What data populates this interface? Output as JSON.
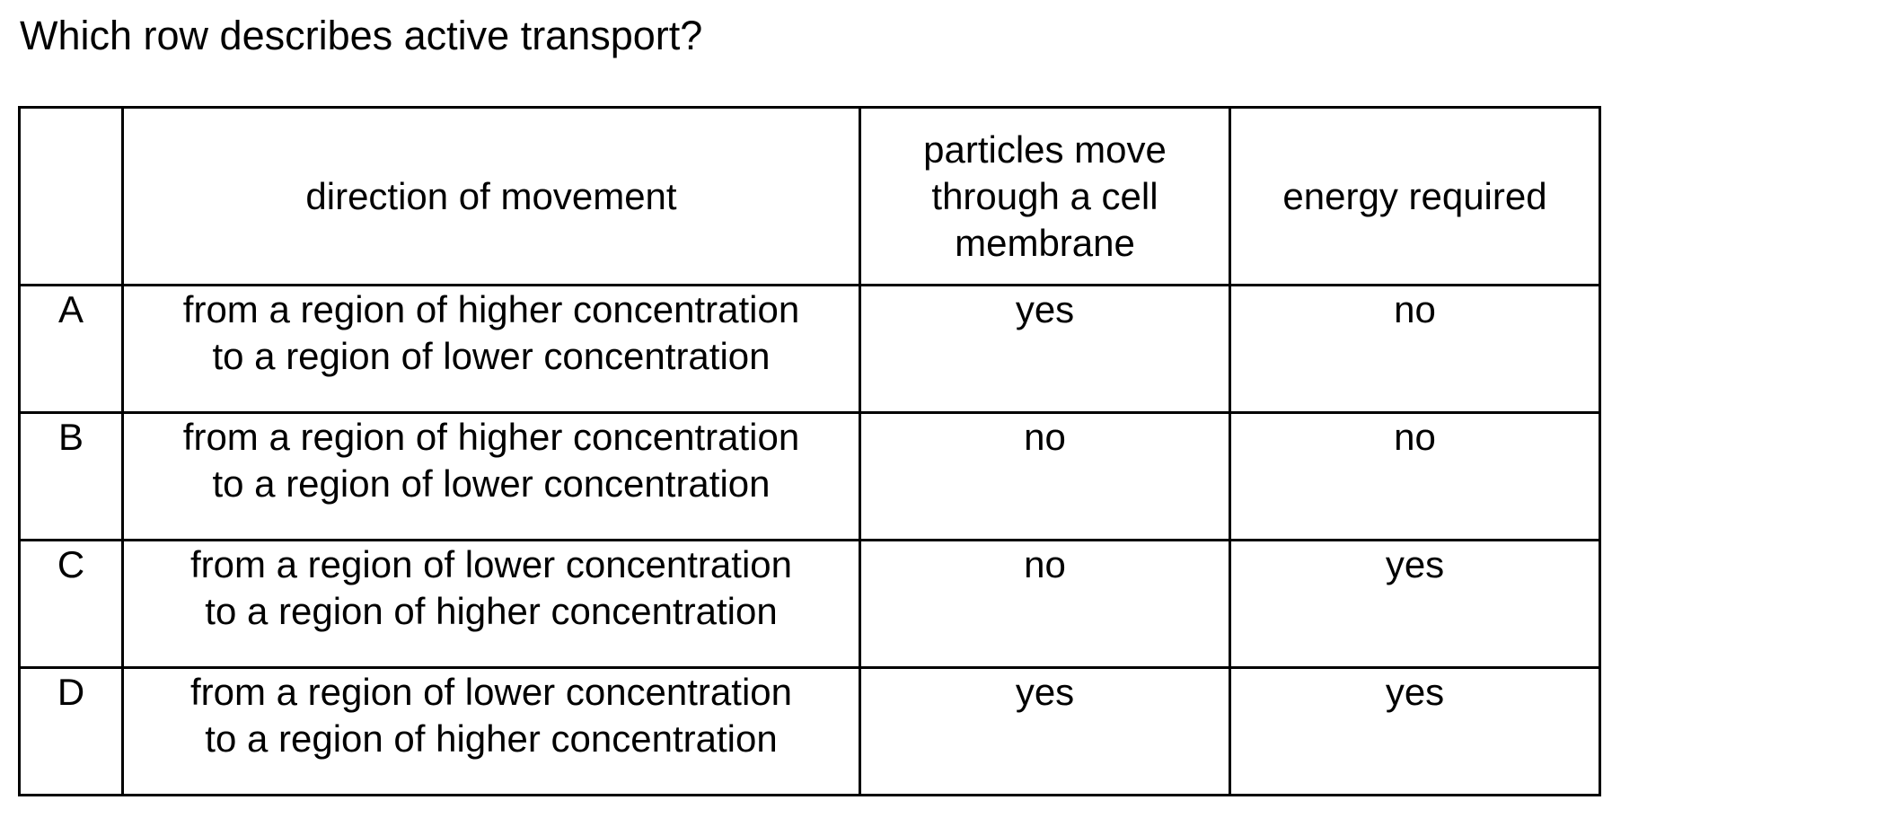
{
  "question": "Which row describes active transport?",
  "table": {
    "headers": [
      "",
      "direction of movement",
      "particles move through a cell membrane",
      "energy required"
    ],
    "header_lines": {
      "particles": [
        "particles move",
        "through a cell",
        "membrane"
      ]
    },
    "rows": [
      {
        "letter": "A",
        "direction_line1": "from a region of higher concentration",
        "direction_line2": "to a region of lower concentration",
        "particles_move": "yes",
        "energy_required": "no"
      },
      {
        "letter": "B",
        "direction_line1": "from a region of higher concentration",
        "direction_line2": "to a region of lower concentration",
        "particles_move": "no",
        "energy_required": "no"
      },
      {
        "letter": "C",
        "direction_line1": "from a region of lower concentration",
        "direction_line2": "to a region of higher concentration",
        "particles_move": "no",
        "energy_required": "yes"
      },
      {
        "letter": "D",
        "direction_line1": "from a region of lower concentration",
        "direction_line2": "to a region of higher concentration",
        "particles_move": "yes",
        "energy_required": "yes"
      }
    ]
  }
}
